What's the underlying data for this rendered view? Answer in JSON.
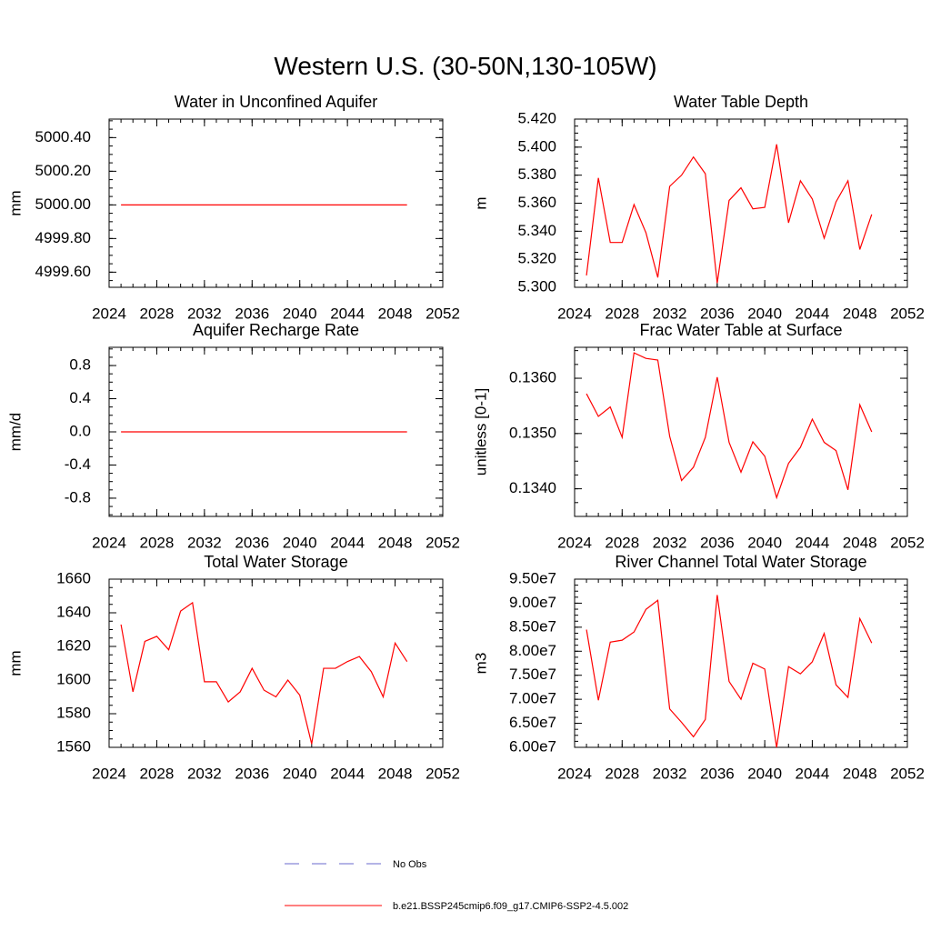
{
  "title": "Western U.S. (30-50N,130-105W)",
  "legend": [
    {
      "name": "No Obs",
      "color": "#6a6acd",
      "dashed": true
    },
    {
      "name": "b.e21.BSSP245cmip6.f09_g17.CMIP6-SSP2-4.5.002",
      "color": "#ff0000",
      "dashed": false
    }
  ],
  "chart_data": [
    {
      "type": "line",
      "title": "Water in Unconfined Aquifer",
      "ylabel": "mm",
      "x": [
        2025,
        2026,
        2027,
        2028,
        2029,
        2030,
        2031,
        2032,
        2033,
        2034,
        2035,
        2036,
        2037,
        2038,
        2039,
        2040,
        2041,
        2042,
        2043,
        2044,
        2045,
        2046,
        2047,
        2048,
        2049
      ],
      "values": [
        5000,
        5000,
        5000,
        5000,
        5000,
        5000,
        5000,
        5000,
        5000,
        5000,
        5000,
        5000,
        5000,
        5000,
        5000,
        5000,
        5000,
        5000,
        5000,
        5000,
        5000,
        5000,
        5000,
        5000,
        5000
      ],
      "color": "#ff0000",
      "xlim": [
        2024,
        2052
      ],
      "xticks": [
        2024,
        2028,
        2032,
        2036,
        2040,
        2044,
        2048,
        2052
      ],
      "ylim": [
        4999.51,
        5000.51
      ],
      "yticks": [
        {
          "value": 4999.6,
          "label": "4999.60"
        },
        {
          "value": 4999.8,
          "label": "4999.80"
        },
        {
          "value": 5000,
          "label": "5000.00"
        },
        {
          "value": 5000.2,
          "label": "5000.20"
        },
        {
          "value": 5000.4,
          "label": "5000.40"
        }
      ]
    },
    {
      "type": "line",
      "title": "Water Table Depth",
      "ylabel": "m",
      "x": [
        2025,
        2026,
        2027,
        2028,
        2029,
        2030,
        2031,
        2032,
        2033,
        2034,
        2035,
        2036,
        2037,
        2038,
        2039,
        2040,
        2041,
        2042,
        2043,
        2044,
        2045,
        2046,
        2047,
        2048,
        2049
      ],
      "values": [
        5.3085,
        5.378,
        5.332,
        5.332,
        5.359,
        5.339,
        5.307,
        5.372,
        5.38,
        5.393,
        5.381,
        5.303,
        5.362,
        5.371,
        5.356,
        5.357,
        5.402,
        5.346,
        5.376,
        5.363,
        5.335,
        5.361,
        5.376,
        5.327,
        5.352
      ],
      "color": "#ff0000",
      "xlim": [
        2024,
        2052
      ],
      "xticks": [
        2024,
        2028,
        2032,
        2036,
        2040,
        2044,
        2048,
        2052
      ],
      "ylim": [
        5.3,
        5.42
      ],
      "yticks": [
        {
          "value": 5.3,
          "label": "5.300"
        },
        {
          "value": 5.32,
          "label": "5.320"
        },
        {
          "value": 5.34,
          "label": "5.340"
        },
        {
          "value": 5.36,
          "label": "5.360"
        },
        {
          "value": 5.38,
          "label": "5.380"
        },
        {
          "value": 5.4,
          "label": "5.400"
        },
        {
          "value": 5.42,
          "label": "5.420"
        }
      ]
    },
    {
      "type": "line",
      "title": "Aquifer Recharge Rate",
      "ylabel": "mm/d",
      "x": [
        2025,
        2026,
        2027,
        2028,
        2029,
        2030,
        2031,
        2032,
        2033,
        2034,
        2035,
        2036,
        2037,
        2038,
        2039,
        2040,
        2041,
        2042,
        2043,
        2044,
        2045,
        2046,
        2047,
        2048,
        2049
      ],
      "values": [
        0,
        0,
        0,
        0,
        0,
        0,
        0,
        0,
        0,
        0,
        0,
        0,
        0,
        0,
        0,
        0,
        0,
        0,
        0,
        0,
        0,
        0,
        0,
        0,
        0
      ],
      "color": "#ff0000",
      "xlim": [
        2024,
        2052
      ],
      "xticks": [
        2024,
        2028,
        2032,
        2036,
        2040,
        2044,
        2048,
        2052
      ],
      "ylim": [
        -1.02,
        1.02
      ],
      "yticks": [
        -0.8,
        -0.4,
        {
          "value": 0,
          "label": "0.0"
        },
        0.4,
        0.8
      ]
    },
    {
      "type": "line",
      "title": "Frac Water Table at Surface",
      "ylabel": "unitless [0-1]",
      "x": [
        2025,
        2026,
        2027,
        2028,
        2029,
        2030,
        2031,
        2032,
        2033,
        2034,
        2035,
        2036,
        2037,
        2038,
        2039,
        2040,
        2041,
        2042,
        2043,
        2044,
        2045,
        2046,
        2047,
        2048,
        2049
      ],
      "values": [
        0.13572,
        0.13531,
        0.13548,
        0.13493,
        0.13646,
        0.13636,
        0.13633,
        0.13495,
        0.13415,
        0.13439,
        0.13493,
        0.13602,
        0.13484,
        0.1343,
        0.13485,
        0.13459,
        0.13384,
        0.13446,
        0.13475,
        0.13526,
        0.13484,
        0.13469,
        0.13398,
        0.13552,
        0.13503
      ],
      "color": "#ff0000",
      "xlim": [
        2024,
        2052
      ],
      "xticks": [
        2024,
        2028,
        2032,
        2036,
        2040,
        2044,
        2048,
        2052
      ],
      "ylim": [
        0.1335,
        0.13656
      ],
      "yticks": [
        {
          "value": 0.134,
          "label": "0.1340"
        },
        {
          "value": 0.135,
          "label": "0.1350"
        },
        {
          "value": 0.136,
          "label": "0.1360"
        }
      ]
    },
    {
      "type": "line",
      "title": "Total Water Storage",
      "ylabel": "mm",
      "x": [
        2025,
        2026,
        2027,
        2028,
        2029,
        2030,
        2031,
        2032,
        2033,
        2034,
        2035,
        2036,
        2037,
        2038,
        2039,
        2040,
        2041,
        2042,
        2043,
        2044,
        2045,
        2046,
        2047,
        2048,
        2049
      ],
      "values": [
        1633,
        1593,
        1623,
        1626,
        1618,
        1641,
        1646,
        1599,
        1599,
        1587,
        1593,
        1607,
        1594,
        1590,
        1600,
        1591,
        1562,
        1607,
        1607,
        1611,
        1614,
        1605,
        1590,
        1622,
        1611
      ],
      "color": "#ff0000",
      "xlim": [
        2024,
        2052
      ],
      "xticks": [
        2024,
        2028,
        2032,
        2036,
        2040,
        2044,
        2048,
        2052
      ],
      "ylim": [
        1560,
        1660
      ],
      "yticks": [
        1560,
        1580,
        1600,
        1620,
        1640,
        1660
      ]
    },
    {
      "type": "line",
      "title": "River Channel Total Water Storage",
      "ylabel": "m3",
      "x": [
        2025,
        2026,
        2027,
        2028,
        2029,
        2030,
        2031,
        2032,
        2033,
        2034,
        2035,
        2036,
        2037,
        2038,
        2039,
        2040,
        2041,
        2042,
        2043,
        2044,
        2045,
        2046,
        2047,
        2048,
        2049
      ],
      "values": [
        84500000,
        69800000,
        81900000,
        82300000,
        84000000,
        88700000,
        90600000,
        68000000,
        65200000,
        62200000,
        65800000,
        91700000,
        73700000,
        70000000,
        77500000,
        76300000,
        60000000,
        76800000,
        75300000,
        77800000,
        83700000,
        73000000,
        70400000,
        86800000,
        81700000
      ],
      "color": "#ff0000",
      "xlim": [
        2024,
        2052
      ],
      "xticks": [
        2024,
        2028,
        2032,
        2036,
        2040,
        2044,
        2048,
        2052
      ],
      "ylim": [
        60000000,
        95000000
      ],
      "yticks": [
        {
          "value": 60000000,
          "label": "6.00e7"
        },
        {
          "value": 65000000,
          "label": "6.50e7"
        },
        {
          "value": 70000000,
          "label": "7.00e7"
        },
        {
          "value": 75000000,
          "label": "7.50e7"
        },
        {
          "value": 80000000,
          "label": "8.00e7"
        },
        {
          "value": 85000000,
          "label": "8.50e7"
        },
        {
          "value": 90000000,
          "label": "9.00e7"
        },
        {
          "value": 95000000,
          "label": "9.50e7"
        }
      ]
    }
  ]
}
